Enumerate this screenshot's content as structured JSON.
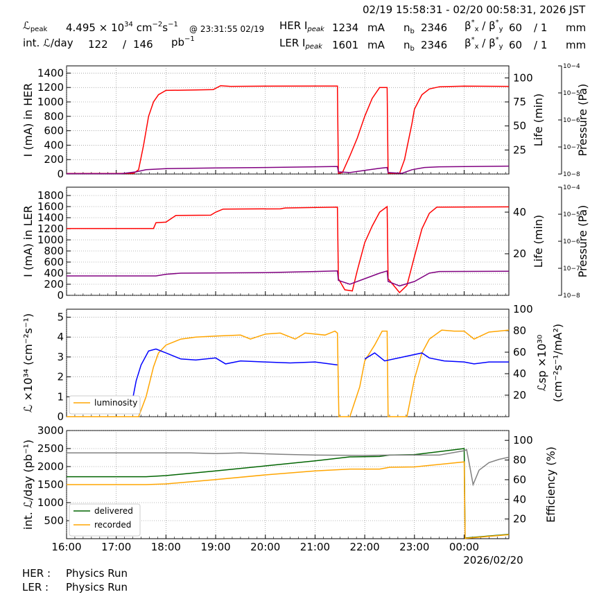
{
  "header": {
    "time_range": "02/19 15:58:31 - 02/20 00:58:31, 2026 JST",
    "lpeak_label": "peak",
    "lpeak_value": "4.495",
    "lpeak_unit_pre": "× 10",
    "lpeak_exp": "34",
    "lpeak_unit": "cm",
    "lpeak_time": "@ 23:31:55 02/19",
    "intl_label": "int.",
    "intl_day": "/day",
    "intl_value1": "122",
    "intl_sep": "/",
    "intl_value2": "146",
    "intl_unit": "pb",
    "intl_unit_exp": "−1",
    "her_label": "HER I",
    "her_sub": "peak",
    "her_value": "1234",
    "her_unit": "mA",
    "ler_label": "LER I",
    "ler_sub": "peak",
    "ler_value": "1601",
    "ler_unit": "mA",
    "nb_label": "n",
    "nb_sub": "b",
    "her_nb": "2346",
    "ler_nb": "2346",
    "beta_label": "β",
    "beta_x": "x",
    "beta_y": "y",
    "her_beta_x": "60",
    "her_beta_y": "/ 1",
    "ler_beta_x": "60",
    "ler_beta_y": "/ 1",
    "beta_unit": "mm"
  },
  "footer": {
    "her_label": "HER :",
    "her_status": "Physics Run",
    "ler_label": "LER :",
    "ler_status": "Physics Run"
  },
  "chart_data": [
    {
      "type": "line",
      "panel": "HER",
      "ylabel": "I (mA) in HER",
      "ylim": [
        0,
        1500
      ],
      "yticks": [
        0,
        200,
        400,
        600,
        800,
        1000,
        1200,
        1400
      ],
      "y2label": "Life (min)",
      "y2lim": [
        0,
        112.5
      ],
      "y2ticks": [
        25,
        50,
        75,
        100
      ],
      "y3label": "Pressure (Pa)",
      "y3ticks": [
        "10−8",
        "10−7",
        "10−6",
        "10−5",
        "10−4"
      ],
      "grid": true,
      "series": [
        {
          "color": "#ff0000",
          "points": [
            [
              16.0,
              8
            ],
            [
              17.0,
              8
            ],
            [
              17.35,
              10
            ],
            [
              17.45,
              60
            ],
            [
              17.55,
              400
            ],
            [
              17.65,
              800
            ],
            [
              17.75,
              1000
            ],
            [
              17.85,
              1100
            ],
            [
              18.0,
              1160
            ],
            [
              18.6,
              1165
            ],
            [
              18.95,
              1170
            ],
            [
              19.1,
              1225
            ],
            [
              19.3,
              1215
            ],
            [
              20.0,
              1218
            ],
            [
              21.0,
              1220
            ],
            [
              21.45,
              1220
            ],
            [
              21.47,
              10
            ],
            [
              21.55,
              20
            ],
            [
              21.7,
              250
            ],
            [
              21.85,
              500
            ],
            [
              22.0,
              800
            ],
            [
              22.15,
              1050
            ],
            [
              22.3,
              1200
            ],
            [
              22.45,
              1200
            ],
            [
              22.47,
              10
            ],
            [
              22.7,
              10
            ],
            [
              22.8,
              200
            ],
            [
              22.95,
              700
            ],
            [
              23.0,
              900
            ],
            [
              23.15,
              1100
            ],
            [
              23.3,
              1180
            ],
            [
              23.5,
              1210
            ],
            [
              24.0,
              1218
            ],
            [
              24.9,
              1215
            ]
          ]
        },
        {
          "color": "#800080",
          "points": [
            [
              16.0,
              5
            ],
            [
              17.1,
              5
            ],
            [
              17.4,
              30
            ],
            [
              17.6,
              60
            ],
            [
              18.0,
              75
            ],
            [
              19.0,
              85
            ],
            [
              20.0,
              90
            ],
            [
              21.0,
              100
            ],
            [
              21.45,
              105
            ],
            [
              21.47,
              30
            ],
            [
              21.7,
              20
            ],
            [
              22.0,
              50
            ],
            [
              22.3,
              80
            ],
            [
              22.45,
              90
            ],
            [
              22.47,
              20
            ],
            [
              22.75,
              10
            ],
            [
              22.95,
              60
            ],
            [
              23.2,
              90
            ],
            [
              23.5,
              100
            ],
            [
              24.9,
              110
            ]
          ]
        }
      ]
    },
    {
      "type": "line",
      "panel": "LER",
      "ylabel": "I (mA) in LER",
      "ylim": [
        0,
        1950
      ],
      "yticks": [
        0,
        200,
        400,
        600,
        800,
        1000,
        1200,
        1400,
        1600,
        1800
      ],
      "y2label": "Life (min)",
      "y2lim": [
        0,
        52
      ],
      "y2ticks": [
        20,
        40
      ],
      "y3label": "Pressure (Pa)",
      "y3ticks": [
        "10−8",
        "10−7",
        "10−6",
        "10−5",
        "10−4"
      ],
      "grid": true,
      "series": [
        {
          "color": "#ff0000",
          "points": [
            [
              16.0,
              1205
            ],
            [
              17.75,
              1205
            ],
            [
              17.8,
              1310
            ],
            [
              18.0,
              1320
            ],
            [
              18.2,
              1440
            ],
            [
              18.9,
              1445
            ],
            [
              19.0,
              1500
            ],
            [
              19.15,
              1555
            ],
            [
              20.3,
              1560
            ],
            [
              20.4,
              1575
            ],
            [
              21.45,
              1590
            ],
            [
              21.47,
              300
            ],
            [
              21.6,
              100
            ],
            [
              21.75,
              80
            ],
            [
              21.85,
              450
            ],
            [
              22.0,
              950
            ],
            [
              22.15,
              1250
            ],
            [
              22.3,
              1500
            ],
            [
              22.45,
              1600
            ],
            [
              22.47,
              300
            ],
            [
              22.7,
              50
            ],
            [
              22.85,
              180
            ],
            [
              23.0,
              700
            ],
            [
              23.15,
              1200
            ],
            [
              23.3,
              1480
            ],
            [
              23.45,
              1590
            ],
            [
              24.9,
              1595
            ]
          ]
        },
        {
          "color": "#800080",
          "points": [
            [
              16.0,
              350
            ],
            [
              17.8,
              350
            ],
            [
              18.0,
              380
            ],
            [
              18.3,
              400
            ],
            [
              20.0,
              410
            ],
            [
              21.0,
              430
            ],
            [
              21.45,
              440
            ],
            [
              21.47,
              270
            ],
            [
              21.7,
              200
            ],
            [
              22.0,
              300
            ],
            [
              22.3,
              400
            ],
            [
              22.45,
              440
            ],
            [
              22.47,
              250
            ],
            [
              22.7,
              170
            ],
            [
              23.0,
              250
            ],
            [
              23.3,
              400
            ],
            [
              23.5,
              430
            ],
            [
              24.9,
              435
            ]
          ]
        }
      ]
    },
    {
      "type": "line",
      "panel": "Luminosity",
      "ylabel": "ℒ ×10³⁴ (cm⁻²s⁻¹)",
      "ylim": [
        0,
        5.4
      ],
      "yticks": [
        0,
        1,
        2,
        3,
        4,
        5
      ],
      "y2label": "ℒsp ×10³⁰ (cm⁻²s⁻¹/mA²)",
      "y2lim": [
        0,
        100
      ],
      "y2ticks": [
        20,
        40,
        60,
        80,
        100
      ],
      "legend": [
        "luminosity"
      ],
      "legend_position": "lower-left",
      "grid": true,
      "series": [
        {
          "name": "luminosity",
          "color": "#ffa500",
          "points": [
            [
              16.0,
              0
            ],
            [
              17.45,
              0
            ],
            [
              17.6,
              1.0
            ],
            [
              17.75,
              2.5
            ],
            [
              17.85,
              3.2
            ],
            [
              18.0,
              3.6
            ],
            [
              18.3,
              3.9
            ],
            [
              18.6,
              4.0
            ],
            [
              19.0,
              4.05
            ],
            [
              19.5,
              4.1
            ],
            [
              19.7,
              3.9
            ],
            [
              20.0,
              4.15
            ],
            [
              20.3,
              4.2
            ],
            [
              20.6,
              3.9
            ],
            [
              20.8,
              4.2
            ],
            [
              21.2,
              4.1
            ],
            [
              21.4,
              4.3
            ],
            [
              21.45,
              4.2
            ],
            [
              21.48,
              0
            ],
            [
              21.7,
              0
            ],
            [
              21.9,
              1.5
            ],
            [
              22.0,
              2.8
            ],
            [
              22.2,
              3.6
            ],
            [
              22.35,
              4.3
            ],
            [
              22.45,
              4.3
            ],
            [
              22.47,
              0
            ],
            [
              22.85,
              0
            ],
            [
              23.0,
              1.9
            ],
            [
              23.15,
              3.2
            ],
            [
              23.3,
              3.9
            ],
            [
              23.55,
              4.35
            ],
            [
              23.8,
              4.3
            ],
            [
              24.0,
              4.3
            ],
            [
              24.2,
              3.9
            ],
            [
              24.5,
              4.25
            ],
            [
              24.9,
              4.35
            ]
          ]
        },
        {
          "color": "#0000ff",
          "points": [
            [
              17.3,
              0.5
            ],
            [
              17.4,
              1.8
            ],
            [
              17.5,
              2.6
            ],
            [
              17.65,
              3.3
            ],
            [
              17.8,
              3.4
            ],
            [
              18.0,
              3.2
            ],
            [
              18.3,
              2.9
            ],
            [
              18.6,
              2.85
            ],
            [
              19.0,
              2.95
            ],
            [
              19.2,
              2.65
            ],
            [
              19.5,
              2.8
            ],
            [
              20.0,
              2.75
            ],
            [
              20.5,
              2.7
            ],
            [
              21.0,
              2.75
            ],
            [
              21.45,
              2.6
            ]
          ]
        },
        {
          "color": "#0000ff",
          "points": [
            [
              22.0,
              2.9
            ],
            [
              22.2,
              3.2
            ],
            [
              22.4,
              2.8
            ],
            [
              23.15,
              3.2
            ],
            [
              23.3,
              2.95
            ],
            [
              23.6,
              2.8
            ],
            [
              24.0,
              2.75
            ],
            [
              24.2,
              2.65
            ],
            [
              24.5,
              2.75
            ],
            [
              24.9,
              2.75
            ]
          ]
        }
      ]
    },
    {
      "type": "line",
      "panel": "Integrated",
      "ylabel": "int. ℒ/day (pb⁻¹)",
      "ylim": [
        0,
        3000
      ],
      "yticks": [
        500,
        1000,
        1500,
        2000,
        2500,
        3000
      ],
      "y2label": "Efficiency (%)",
      "y2lim": [
        0,
        110
      ],
      "y2ticks": [
        20,
        40,
        60,
        80,
        100
      ],
      "legend": [
        "delivered",
        "recorded"
      ],
      "legend_position": "lower-left",
      "grid": true,
      "series": [
        {
          "name": "delivered",
          "color": "#006400",
          "points": [
            [
              16.0,
              1720
            ],
            [
              17.6,
              1720
            ],
            [
              18.0,
              1750
            ],
            [
              19.0,
              1880
            ],
            [
              20.0,
              2020
            ],
            [
              21.0,
              2160
            ],
            [
              21.7,
              2270
            ],
            [
              22.3,
              2280
            ],
            [
              22.5,
              2320
            ],
            [
              23.0,
              2330
            ],
            [
              24.0,
              2500
            ],
            [
              24.02,
              20
            ],
            [
              24.9,
              120
            ]
          ]
        },
        {
          "name": "recorded",
          "color": "#ffa500",
          "points": [
            [
              16.0,
              1500
            ],
            [
              17.6,
              1500
            ],
            [
              18.0,
              1520
            ],
            [
              19.0,
              1640
            ],
            [
              20.0,
              1770
            ],
            [
              21.0,
              1880
            ],
            [
              21.7,
              1930
            ],
            [
              22.3,
              1930
            ],
            [
              22.5,
              1980
            ],
            [
              23.0,
              1990
            ],
            [
              24.0,
              2130
            ],
            [
              24.02,
              10
            ],
            [
              24.9,
              110
            ]
          ]
        },
        {
          "color": "#808080",
          "points": [
            [
              16.0,
              2380
            ],
            [
              18.5,
              2380
            ],
            [
              19.0,
              2360
            ],
            [
              19.5,
              2380
            ],
            [
              20.3,
              2340
            ],
            [
              21.0,
              2320
            ],
            [
              22.0,
              2310
            ],
            [
              22.5,
              2320
            ],
            [
              23.0,
              2320
            ],
            [
              23.5,
              2320
            ],
            [
              24.0,
              2440
            ],
            [
              24.05,
              2470
            ],
            [
              24.1,
              2100
            ],
            [
              24.18,
              1500
            ],
            [
              24.3,
              1900
            ],
            [
              24.5,
              2110
            ],
            [
              24.7,
              2200
            ],
            [
              24.9,
              2260
            ]
          ]
        }
      ],
      "xticks": [
        "16:00",
        "17:00",
        "18:00",
        "19:00",
        "20:00",
        "21:00",
        "22:00",
        "23:00",
        "00:00"
      ],
      "xdate_label": "2026/02/20"
    }
  ]
}
